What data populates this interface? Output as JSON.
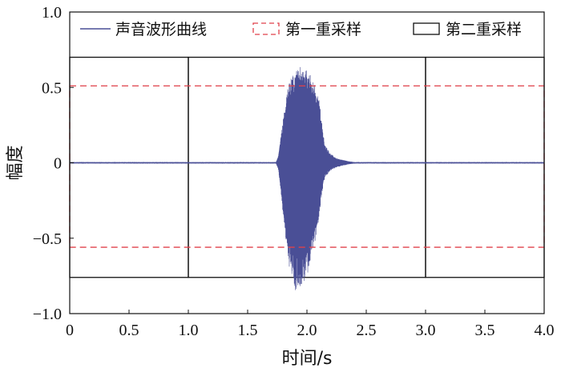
{
  "chart_data": {
    "type": "line",
    "title": "",
    "xlabel": "时间/s",
    "ylabel": "幅度",
    "xlim": [
      0,
      4.0
    ],
    "ylim": [
      -1.0,
      1.0
    ],
    "x_ticks": [
      0,
      0.5,
      1.0,
      1.5,
      2.0,
      2.5,
      3.0,
      3.5,
      4.0
    ],
    "x_tick_labels": [
      "0",
      "0.5",
      "1.0",
      "1.5",
      "2.0",
      "2.5",
      "3.0",
      "3.5",
      "4.0"
    ],
    "y_ticks": [
      -1.0,
      -0.5,
      0,
      0.5,
      1.0
    ],
    "y_tick_labels": [
      "−1.0",
      "−0.5",
      "0",
      "0.5",
      "1.0"
    ],
    "grid": false,
    "legend_position": "top",
    "series": [
      {
        "name": "声音波形曲线",
        "color": "#4a4f96",
        "style": "solid",
        "envelope": {
          "t": [
            0,
            1.74,
            1.76,
            1.8,
            1.85,
            1.9,
            1.95,
            2.0,
            2.05,
            2.1,
            2.12,
            2.15,
            2.2,
            2.25,
            2.3,
            2.35,
            2.4,
            4.0
          ],
          "upper": [
            0.005,
            0.005,
            0.05,
            0.3,
            0.56,
            0.6,
            0.64,
            0.62,
            0.55,
            0.45,
            0.3,
            0.12,
            0.06,
            0.03,
            0.02,
            0.01,
            0.005,
            0.005
          ],
          "lower": [
            -0.005,
            -0.005,
            -0.05,
            -0.35,
            -0.7,
            -0.85,
            -0.82,
            -0.75,
            -0.6,
            -0.4,
            -0.25,
            -0.1,
            -0.05,
            -0.03,
            -0.02,
            -0.01,
            -0.005,
            -0.005
          ]
        }
      },
      {
        "name": "第一重采样",
        "color": "#e0414a",
        "style": "dashed",
        "box": {
          "x": [
            0,
            4.0
          ],
          "y": [
            -0.56,
            0.51
          ]
        }
      },
      {
        "name": "第二重采样",
        "color": "#111111",
        "style": "solid",
        "boxes": [
          {
            "x": [
              0,
              1.0
            ],
            "y": [
              -0.76,
              0.7
            ]
          },
          {
            "x": [
              1.0,
              3.0
            ],
            "y": [
              -0.76,
              0.7
            ]
          },
          {
            "x": [
              3.0,
              4.0
            ],
            "y": [
              -0.76,
              0.7
            ]
          }
        ]
      }
    ]
  }
}
